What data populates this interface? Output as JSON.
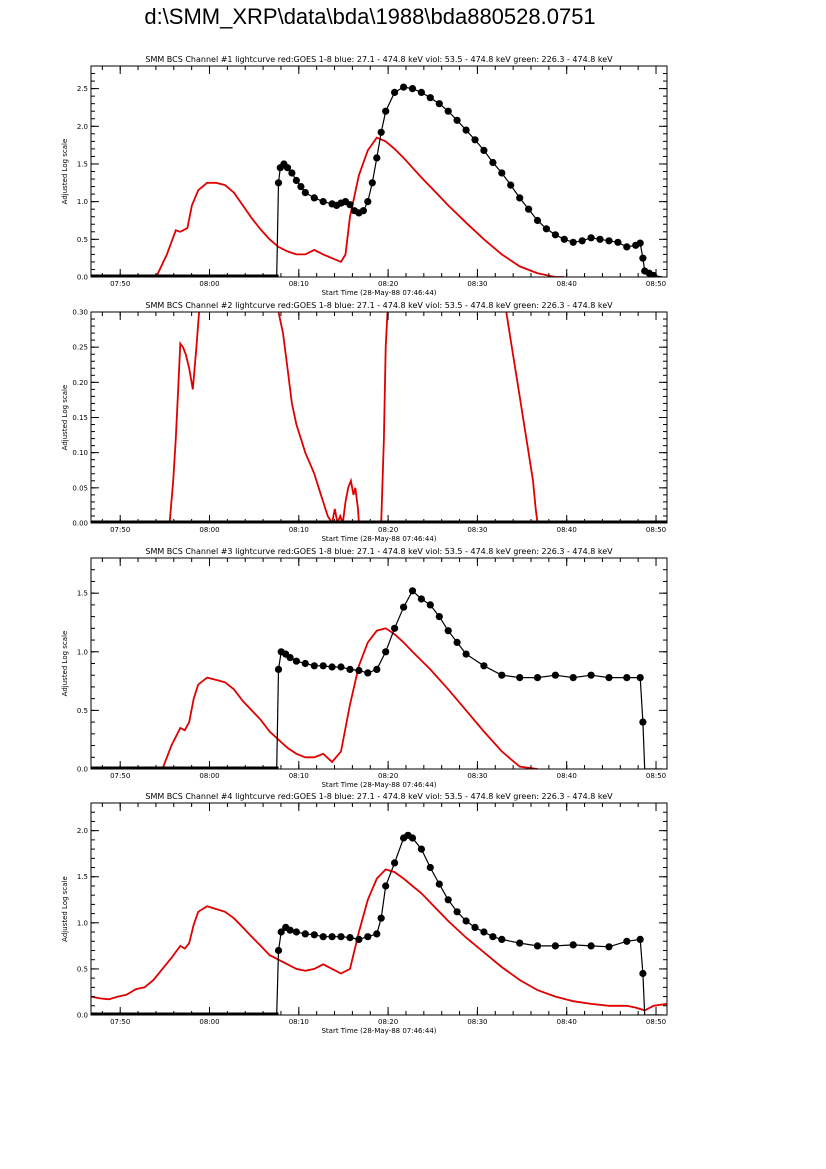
{
  "page_title": "d:\\SMM_XRP\\data\\bda\\1988\\bda880528.0751",
  "colors": {
    "goes": "#e00000",
    "bcs": "#000000"
  },
  "chart_data": [
    {
      "type": "line",
      "title": "SMM BCS Channel #1 lightcurve  red:GOES 1-8  blue: 27.1 - 474.8 keV  viol: 53.5 - 474.8 keV  green: 226.3 - 474.8 keV",
      "xlabel": "Start Time (28-May-88 07:46:44)",
      "ylabel": "Adjusted Log scale",
      "xlim": [
        0,
        64.5
      ],
      "ylim": [
        0,
        2.8
      ],
      "xticks": [
        {
          "v": 3.27,
          "label": "07:50"
        },
        {
          "v": 13.27,
          "label": "08:00"
        },
        {
          "v": 23.27,
          "label": "08:10"
        },
        {
          "v": 33.27,
          "label": "08:20"
        },
        {
          "v": 43.27,
          "label": "08:30"
        },
        {
          "v": 53.27,
          "label": "08:40"
        },
        {
          "v": 63.27,
          "label": "08:50"
        }
      ],
      "yticks": [
        {
          "v": 0,
          "label": "0.0"
        },
        {
          "v": 0.5,
          "label": "0.5"
        },
        {
          "v": 1.0,
          "label": "1.0"
        },
        {
          "v": 1.5,
          "label": "1.5"
        },
        {
          "v": 2.0,
          "label": "2.0"
        },
        {
          "v": 2.5,
          "label": "2.5"
        }
      ],
      "series": [
        {
          "name": "GOES 1-8",
          "color": "#e00000",
          "style": "line",
          "x": [
            7.3,
            8.5,
            9.5,
            10.0,
            10.8,
            11.3,
            12.0,
            13.0,
            14.0,
            15.0,
            16.0,
            17.0,
            18.0,
            19.0,
            20.0,
            21.0,
            22.0,
            23.0,
            24.0,
            25.0,
            26.0,
            27.0,
            28.0,
            28.5,
            29.0,
            30.0,
            31.0,
            32.0,
            33.0,
            34.0,
            35.0,
            36.0,
            37.0,
            38.0,
            40.0,
            42.0,
            44.0,
            46.0,
            48.0,
            50.0,
            52.0,
            53.0
          ],
          "y": [
            0.0,
            0.3,
            0.62,
            0.6,
            0.65,
            0.95,
            1.15,
            1.25,
            1.25,
            1.22,
            1.12,
            0.95,
            0.78,
            0.63,
            0.5,
            0.4,
            0.34,
            0.3,
            0.3,
            0.36,
            0.3,
            0.25,
            0.2,
            0.3,
            0.8,
            1.35,
            1.68,
            1.85,
            1.8,
            1.7,
            1.58,
            1.45,
            1.32,
            1.2,
            0.95,
            0.72,
            0.5,
            0.3,
            0.14,
            0.05,
            0.0,
            0.0
          ]
        },
        {
          "name": "BCS Channel #1",
          "color": "#000000",
          "style": "line+points",
          "x": [
            0,
            20.8,
            21.0,
            21.2,
            21.6,
            22.0,
            22.5,
            23.0,
            23.5,
            24.0,
            25.0,
            26.0,
            27.0,
            27.5,
            28.0,
            28.5,
            29.0,
            29.5,
            30.0,
            30.5,
            31.0,
            31.5,
            32.0,
            32.5,
            33.0,
            34.0,
            35.0,
            36.0,
            37.0,
            38.0,
            39.0,
            40.0,
            41.0,
            42.0,
            43.0,
            44.0,
            45.0,
            46.0,
            47.0,
            48.0,
            49.0,
            50.0,
            51.0,
            52.0,
            53.0,
            54.0,
            55.0,
            56.0,
            57.0,
            58.0,
            59.0,
            60.0,
            61.0,
            61.5,
            61.8,
            62.0,
            62.5,
            63.0,
            64.0
          ],
          "y": [
            0.0,
            0.0,
            1.25,
            1.45,
            1.5,
            1.45,
            1.38,
            1.28,
            1.2,
            1.12,
            1.05,
            1.0,
            0.97,
            0.95,
            0.98,
            1.0,
            0.96,
            0.88,
            0.85,
            0.88,
            1.0,
            1.25,
            1.58,
            1.92,
            2.2,
            2.45,
            2.52,
            2.5,
            2.45,
            2.38,
            2.3,
            2.2,
            2.08,
            1.95,
            1.82,
            1.68,
            1.52,
            1.38,
            1.22,
            1.05,
            0.9,
            0.75,
            0.64,
            0.56,
            0.5,
            0.46,
            0.48,
            0.52,
            0.5,
            0.48,
            0.46,
            0.4,
            0.42,
            0.45,
            0.25,
            0.08,
            0.05,
            0.02,
            0.0
          ]
        }
      ]
    },
    {
      "type": "line",
      "title": "SMM BCS Channel #2 lightcurve  red:GOES 1-8  blue: 27.1 - 474.8 keV  viol: 53.5 - 474.8 keV  green: 226.3 - 474.8 keV",
      "xlabel": "Start Time (28-May-88 07:46:44)",
      "ylabel": "Adjusted Log scale",
      "xlim": [
        0,
        64.5
      ],
      "ylim": [
        0,
        0.3
      ],
      "xticks": [
        {
          "v": 3.27,
          "label": "07:50"
        },
        {
          "v": 13.27,
          "label": "08:00"
        },
        {
          "v": 23.27,
          "label": "08:10"
        },
        {
          "v": 33.27,
          "label": "08:20"
        },
        {
          "v": 43.27,
          "label": "08:30"
        },
        {
          "v": 53.27,
          "label": "08:40"
        },
        {
          "v": 63.27,
          "label": "08:50"
        }
      ],
      "yticks": [
        {
          "v": 0,
          "label": "0.00"
        },
        {
          "v": 0.05,
          "label": "0.05"
        },
        {
          "v": 0.1,
          "label": "0.10"
        },
        {
          "v": 0.15,
          "label": "0.15"
        },
        {
          "v": 0.2,
          "label": "0.20"
        },
        {
          "v": 0.25,
          "label": "0.25"
        },
        {
          "v": 0.3,
          "label": "0.30"
        }
      ],
      "series": [
        {
          "name": "GOES 1-8",
          "color": "#e00000",
          "style": "line",
          "x": [
            8.8,
            9.2,
            9.5,
            9.8,
            10.0,
            10.3,
            10.6,
            11.0,
            11.4,
            11.8,
            12.1
          ],
          "y": [
            0.0,
            0.06,
            0.12,
            0.2,
            0.255,
            0.25,
            0.24,
            0.22,
            0.19,
            0.25,
            0.3
          ]
        },
        {
          "name": "GOES 1-8 (decay)",
          "color": "#e00000",
          "style": "line",
          "x": [
            21.0,
            21.5,
            22.0,
            22.5,
            23.0,
            23.5,
            24.0,
            24.5,
            25.0,
            25.5,
            26.0,
            26.5,
            27.0,
            27.3,
            27.6,
            27.9,
            28.2,
            28.5,
            28.8,
            29.1,
            29.4,
            29.6,
            29.9,
            30.0
          ],
          "y": [
            0.3,
            0.27,
            0.22,
            0.17,
            0.14,
            0.12,
            0.1,
            0.085,
            0.07,
            0.05,
            0.03,
            0.01,
            0.0,
            0.02,
            0.0,
            0.01,
            0.0,
            0.03,
            0.05,
            0.06,
            0.04,
            0.05,
            0.02,
            0.0
          ]
        },
        {
          "name": "GOES 1-8 (rise)",
          "color": "#e00000",
          "style": "line",
          "x": [
            32.5,
            32.8,
            33.0,
            33.2
          ],
          "y": [
            0.0,
            0.12,
            0.25,
            0.3
          ]
        },
        {
          "name": "GOES 1-8 (late decay)",
          "color": "#e00000",
          "style": "line",
          "x": [
            46.5,
            47.0,
            47.5,
            48.0,
            48.5,
            49.0,
            49.5,
            49.8,
            50.0
          ],
          "y": [
            0.3,
            0.26,
            0.22,
            0.18,
            0.14,
            0.1,
            0.06,
            0.02,
            0.0
          ]
        },
        {
          "name": "BCS Channel #2",
          "color": "#000000",
          "style": "line",
          "x": [
            0,
            64.5
          ],
          "y": [
            0.0,
            0.0
          ]
        }
      ]
    },
    {
      "type": "line",
      "title": "SMM BCS Channel #3 lightcurve  red:GOES 1-8  blue: 27.1 - 474.8 keV  viol: 53.5 - 474.8 keV  green: 226.3 - 474.8 keV",
      "xlabel": "Start Time (28-May-88 07:46:44)",
      "ylabel": "Adjusted Log scale",
      "xlim": [
        0,
        64.5
      ],
      "ylim": [
        0,
        1.8
      ],
      "xticks": [
        {
          "v": 3.27,
          "label": "07:50"
        },
        {
          "v": 13.27,
          "label": "08:00"
        },
        {
          "v": 23.27,
          "label": "08:10"
        },
        {
          "v": 33.27,
          "label": "08:20"
        },
        {
          "v": 43.27,
          "label": "08:30"
        },
        {
          "v": 53.27,
          "label": "08:40"
        },
        {
          "v": 63.27,
          "label": "08:50"
        }
      ],
      "yticks": [
        {
          "v": 0,
          "label": "0.0"
        },
        {
          "v": 0.5,
          "label": "0.5"
        },
        {
          "v": 1.0,
          "label": "1.0"
        },
        {
          "v": 1.5,
          "label": "1.5"
        }
      ],
      "series": [
        {
          "name": "GOES 1-8",
          "color": "#e00000",
          "style": "line",
          "x": [
            8.0,
            9.0,
            10.0,
            10.5,
            11.0,
            11.5,
            12.0,
            13.0,
            14.0,
            15.0,
            16.0,
            17.0,
            18.0,
            19.0,
            20.0,
            21.0,
            22.0,
            23.0,
            24.0,
            25.0,
            26.0,
            27.0,
            28.0,
            29.0,
            30.0,
            31.0,
            32.0,
            33.0,
            34.0,
            35.0,
            36.0,
            38.0,
            40.0,
            42.0,
            44.0,
            46.0,
            48.0,
            50.0
          ],
          "y": [
            0.0,
            0.2,
            0.35,
            0.33,
            0.4,
            0.6,
            0.72,
            0.78,
            0.76,
            0.74,
            0.68,
            0.58,
            0.5,
            0.42,
            0.32,
            0.25,
            0.18,
            0.13,
            0.1,
            0.1,
            0.13,
            0.06,
            0.15,
            0.55,
            0.88,
            1.08,
            1.18,
            1.2,
            1.15,
            1.08,
            1.0,
            0.85,
            0.68,
            0.5,
            0.32,
            0.15,
            0.02,
            0.0
          ]
        },
        {
          "name": "BCS Channel #3",
          "color": "#000000",
          "style": "line+points",
          "x": [
            0,
            20.8,
            21.0,
            21.3,
            21.8,
            22.3,
            23.0,
            24.0,
            25.0,
            26.0,
            27.0,
            28.0,
            29.0,
            30.0,
            31.0,
            32.0,
            33.0,
            34.0,
            35.0,
            36.0,
            37.0,
            38.0,
            39.0,
            40.0,
            41.0,
            42.0,
            44.0,
            46.0,
            48.0,
            50.0,
            52.0,
            54.0,
            56.0,
            58.0,
            60.0,
            61.5,
            61.8,
            62.0,
            64.0
          ],
          "y": [
            0.0,
            0.0,
            0.85,
            1.0,
            0.98,
            0.95,
            0.92,
            0.9,
            0.88,
            0.88,
            0.87,
            0.87,
            0.85,
            0.84,
            0.82,
            0.85,
            1.0,
            1.2,
            1.38,
            1.52,
            1.45,
            1.4,
            1.3,
            1.18,
            1.08,
            0.98,
            0.88,
            0.8,
            0.78,
            0.78,
            0.8,
            0.78,
            0.8,
            0.78,
            0.78,
            0.78,
            0.4,
            0.0,
            0.0
          ]
        }
      ]
    },
    {
      "type": "line",
      "title": "SMM BCS Channel #4 lightcurve  red:GOES 1-8  blue: 27.1 - 474.8 keV  viol: 53.5 - 474.8 keV  green: 226.3 - 474.8 keV",
      "xlabel": "Start Time (28-May-88 07:46:44)",
      "ylabel": "Adjusted Log scale",
      "xlim": [
        0,
        64.5
      ],
      "ylim": [
        0,
        2.3
      ],
      "xticks": [
        {
          "v": 3.27,
          "label": "07:50"
        },
        {
          "v": 13.27,
          "label": "08:00"
        },
        {
          "v": 23.27,
          "label": "08:10"
        },
        {
          "v": 33.27,
          "label": "08:20"
        },
        {
          "v": 43.27,
          "label": "08:30"
        },
        {
          "v": 53.27,
          "label": "08:40"
        },
        {
          "v": 63.27,
          "label": "08:50"
        }
      ],
      "yticks": [
        {
          "v": 0,
          "label": "0.0"
        },
        {
          "v": 0.5,
          "label": "0.5"
        },
        {
          "v": 1.0,
          "label": "1.0"
        },
        {
          "v": 1.5,
          "label": "1.5"
        },
        {
          "v": 2.0,
          "label": "2.0"
        }
      ],
      "series": [
        {
          "name": "GOES 1-8",
          "color": "#e00000",
          "style": "line",
          "x": [
            0,
            1.0,
            2.0,
            3.0,
            4.0,
            5.0,
            6.0,
            7.0,
            8.0,
            9.0,
            10.0,
            10.5,
            11.0,
            11.5,
            12.0,
            13.0,
            14.0,
            15.0,
            16.0,
            17.0,
            18.0,
            19.0,
            20.0,
            21.0,
            22.0,
            23.0,
            24.0,
            25.0,
            26.0,
            27.0,
            28.0,
            29.0,
            30.0,
            31.0,
            32.0,
            33.0,
            34.0,
            35.0,
            36.0,
            37.0,
            38.0,
            40.0,
            42.0,
            44.0,
            46.0,
            48.0,
            50.0,
            52.0,
            54.0,
            56.0,
            58.0,
            60.0,
            61.0,
            62.0,
            63.0,
            64.5
          ],
          "y": [
            0.2,
            0.18,
            0.17,
            0.2,
            0.22,
            0.28,
            0.3,
            0.38,
            0.5,
            0.62,
            0.75,
            0.72,
            0.78,
            0.98,
            1.12,
            1.18,
            1.15,
            1.12,
            1.05,
            0.95,
            0.85,
            0.75,
            0.65,
            0.6,
            0.55,
            0.5,
            0.48,
            0.5,
            0.55,
            0.5,
            0.45,
            0.5,
            0.9,
            1.25,
            1.48,
            1.58,
            1.55,
            1.48,
            1.4,
            1.32,
            1.22,
            1.02,
            0.84,
            0.68,
            0.52,
            0.38,
            0.27,
            0.2,
            0.15,
            0.12,
            0.1,
            0.1,
            0.08,
            0.05,
            0.1,
            0.12
          ]
        },
        {
          "name": "BCS Channel #4",
          "color": "#000000",
          "style": "line+points",
          "x": [
            0,
            20.8,
            21.0,
            21.3,
            21.8,
            22.3,
            23.0,
            24.0,
            25.0,
            26.0,
            27.0,
            28.0,
            29.0,
            30.0,
            31.0,
            32.0,
            32.5,
            33.0,
            34.0,
            35.0,
            35.5,
            36.0,
            37.0,
            38.0,
            39.0,
            40.0,
            41.0,
            42.0,
            43.0,
            44.0,
            45.0,
            46.0,
            48.0,
            50.0,
            52.0,
            54.0,
            56.0,
            58.0,
            60.0,
            61.5,
            61.8,
            62.0,
            64.0
          ],
          "y": [
            0.0,
            0.0,
            0.7,
            0.9,
            0.95,
            0.92,
            0.9,
            0.88,
            0.87,
            0.85,
            0.85,
            0.85,
            0.84,
            0.82,
            0.85,
            0.88,
            1.05,
            1.4,
            1.65,
            1.92,
            1.95,
            1.92,
            1.8,
            1.6,
            1.42,
            1.25,
            1.12,
            1.02,
            0.95,
            0.9,
            0.85,
            0.82,
            0.78,
            0.75,
            0.75,
            0.76,
            0.75,
            0.74,
            0.8,
            0.82,
            0.45,
            0.0,
            0.0
          ]
        }
      ]
    }
  ]
}
